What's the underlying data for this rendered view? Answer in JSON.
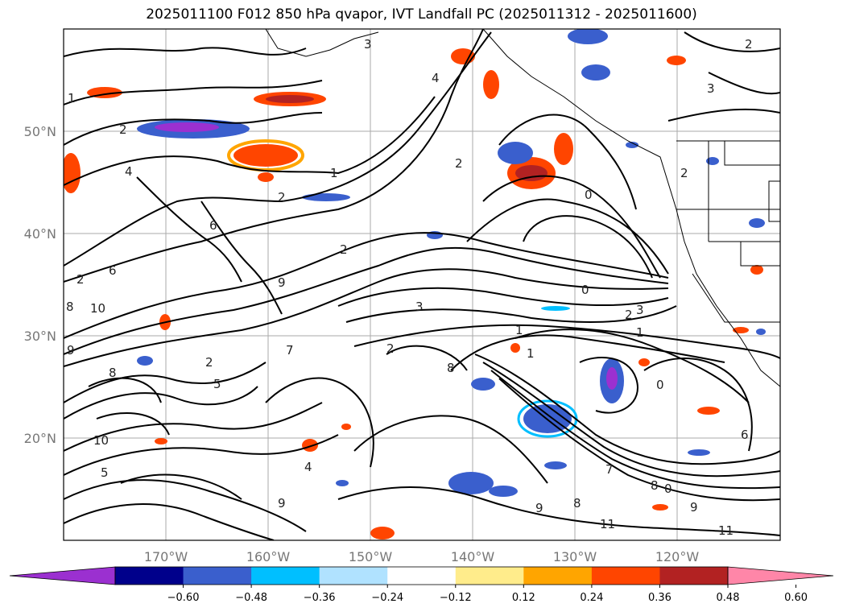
{
  "title": "2025011100 F012 850 hPa qvapor, IVT Landfall PC (2025011312 - 2025011600)",
  "latitude_labels": [
    "50°N",
    "40°N",
    "30°N",
    "20°N"
  ],
  "longitude_labels": [
    "170°W",
    "160°W",
    "150°W",
    "140°W",
    "130°W",
    "120°W"
  ],
  "colorbar": {
    "tick_labels": [
      "−0.60",
      "−0.48",
      "−0.36",
      "−0.24",
      "−0.12",
      "0.12",
      "0.24",
      "0.36",
      "0.48",
      "0.60"
    ],
    "colors": [
      "#9b30d0",
      "#00008b",
      "#3a5fcd",
      "#00bfff",
      "#b0e2ff",
      "#ffffff",
      "#ffec8b",
      "#ffa500",
      "#ff4500",
      "#b22222",
      "#ff86a8"
    ]
  },
  "contour_labels": [
    "1",
    "2",
    "3",
    "4",
    "1",
    "2",
    "4",
    "2",
    "1",
    "2",
    "0",
    "0",
    "6",
    "9",
    "6",
    "10",
    "9",
    "8",
    "2",
    "3",
    "0",
    "2",
    "3",
    "1",
    "1",
    "2",
    "8",
    "7",
    "6",
    "0",
    "10",
    "8",
    "9",
    "11",
    "11",
    "5",
    "7",
    "8",
    "9",
    "4",
    "2",
    "8",
    "9",
    "5",
    "2",
    "3",
    "2"
  ]
}
